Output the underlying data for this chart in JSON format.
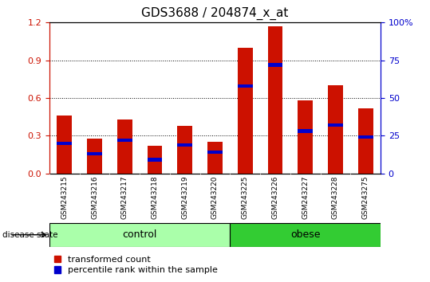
{
  "title": "GDS3688 / 204874_x_at",
  "samples": [
    "GSM243215",
    "GSM243216",
    "GSM243217",
    "GSM243218",
    "GSM243219",
    "GSM243220",
    "GSM243225",
    "GSM243226",
    "GSM243227",
    "GSM243228",
    "GSM243275"
  ],
  "transformed_count": [
    0.46,
    0.28,
    0.43,
    0.22,
    0.38,
    0.25,
    1.0,
    1.17,
    0.58,
    0.7,
    0.52
  ],
  "percentile_rank_pct": [
    20,
    13,
    22,
    9,
    19,
    14,
    58,
    72,
    28,
    32,
    24
  ],
  "groups": [
    {
      "label": "control",
      "start": 0,
      "end": 6,
      "color": "#AAFFAA"
    },
    {
      "label": "obese",
      "start": 6,
      "end": 11,
      "color": "#33CC33"
    }
  ],
  "bar_color_red": "#CC1100",
  "bar_color_blue": "#0000CC",
  "bar_width": 0.5,
  "ylim_left": [
    0,
    1.2
  ],
  "ylim_right": [
    0,
    100
  ],
  "yticks_left": [
    0,
    0.3,
    0.6,
    0.9,
    1.2
  ],
  "yticks_right": [
    0,
    25,
    50,
    75,
    100
  ],
  "ylabel_left_color": "#CC1100",
  "ylabel_right_color": "#0000CC",
  "grid_color": "#000000",
  "background_color": "#FFFFFF",
  "plot_bg_color": "#FFFFFF",
  "label_red": "transformed count",
  "label_blue": "percentile rank within the sample",
  "disease_state_label": "disease state",
  "title_fontsize": 11,
  "tick_fontsize": 8,
  "group_label_fontsize": 9,
  "legend_fontsize": 8
}
